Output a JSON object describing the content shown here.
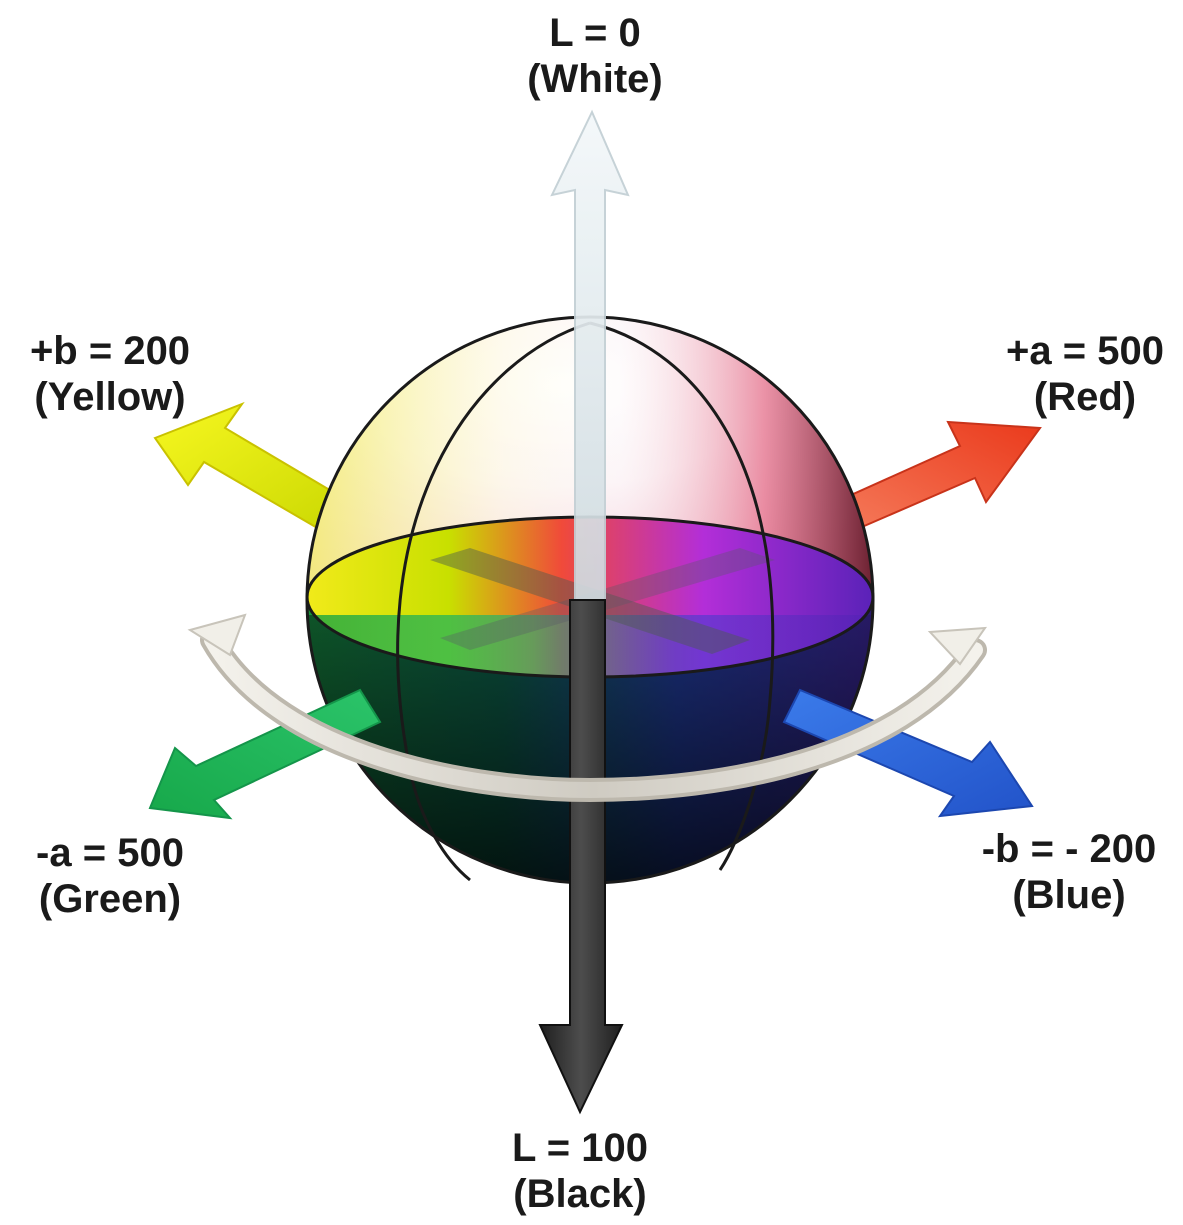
{
  "labels": {
    "top": {
      "value": "L = 0",
      "name": "(White)"
    },
    "bottom": {
      "value": "L = 100",
      "name": "(Black)"
    },
    "upper_left": {
      "value": "+b = 200",
      "name": "(Yellow)"
    },
    "upper_right": {
      "value": "+a = 500",
      "name": "(Red)"
    },
    "lower_left": {
      "value": "-a = 500",
      "name": "(Green)"
    },
    "lower_right": {
      "value": "-b = - 200",
      "name": "(Blue)"
    }
  },
  "colors": {
    "yellow": "#f2f20a",
    "red": "#f0442a",
    "green": "#1fbf5a",
    "blue": "#2f63d8",
    "white_axis": "#e8f2f4",
    "black_axis": "#2b2b2b",
    "ring": "#d9d6cf"
  }
}
